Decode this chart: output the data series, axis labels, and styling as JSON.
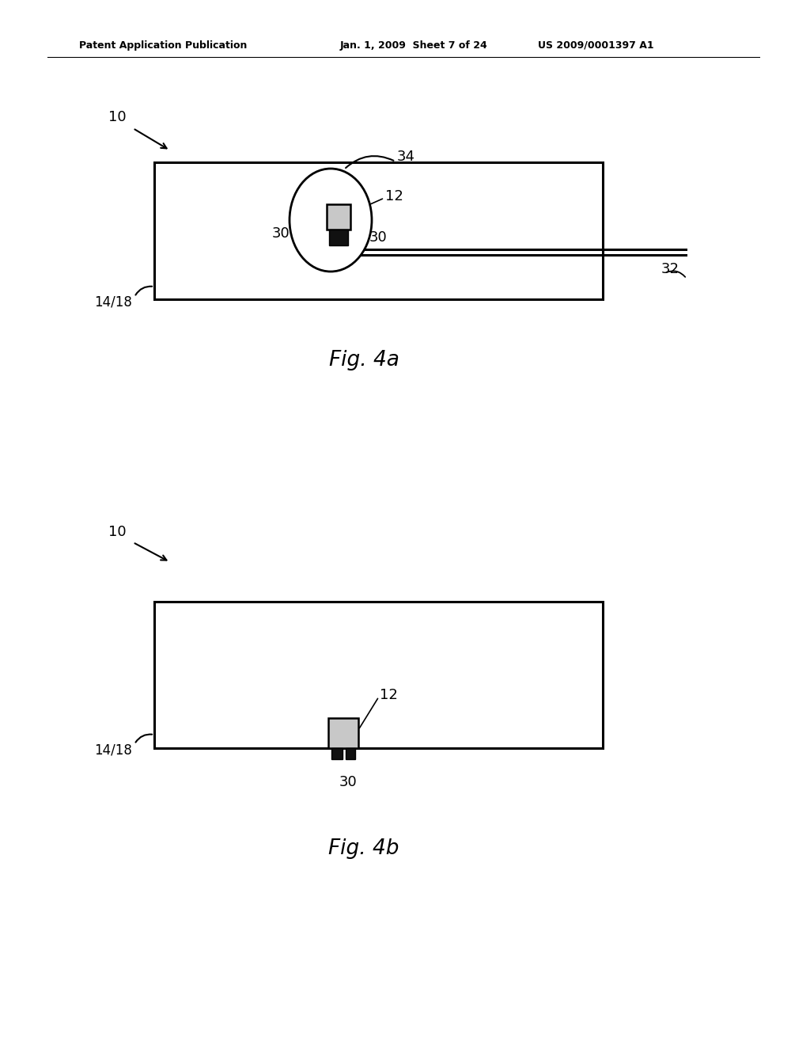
{
  "bg_color": "#ffffff",
  "fig_width": 10.24,
  "fig_height": 13.2,
  "header_left": "Patent Application Publication",
  "header_mid": "Jan. 1, 2009  Sheet 7 of 24",
  "header_right": "US 2009/0001397 A1",
  "fig4a_label": "Fig. 4a",
  "fig4b_label": "Fig. 4b",
  "color_black": "#000000",
  "color_white": "#ffffff",
  "color_gray": "#c8c8c8",
  "color_dark": "#111111"
}
